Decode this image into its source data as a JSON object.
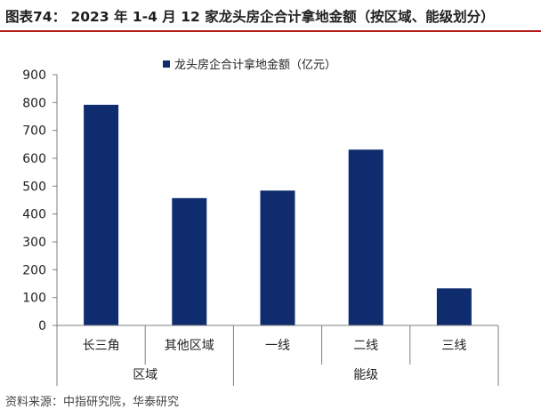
{
  "figure": {
    "title": "图表74： 2023 年 1-4 月 12 家龙头房企合计拿地金额（按区域、能级划分）",
    "source": "资料来源：中指研究院，华泰研究"
  },
  "chart_data": {
    "type": "bar",
    "categories": [
      "长三角",
      "其他区域",
      "一线",
      "二线",
      "三线"
    ],
    "groups": [
      {
        "label": "区域",
        "categories": [
          "长三角",
          "其他区域"
        ]
      },
      {
        "label": "能级",
        "categories": [
          "一线",
          "二线",
          "三线"
        ]
      }
    ],
    "series": [
      {
        "name": "龙头房企合计拿地金额（亿元）",
        "values": [
          792,
          457,
          484,
          631,
          133
        ],
        "color": "#0f2d6e"
      }
    ],
    "ylim": [
      0,
      900
    ],
    "yticks": [
      0,
      100,
      200,
      300,
      400,
      500,
      600,
      700,
      800,
      900
    ],
    "grid": false,
    "legend": "top-center"
  }
}
